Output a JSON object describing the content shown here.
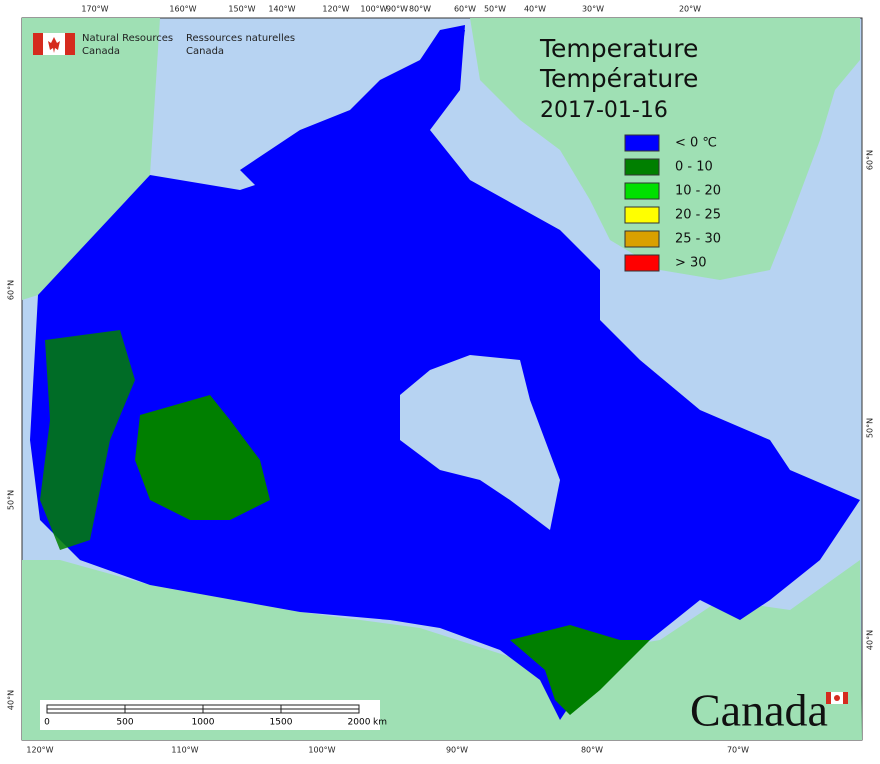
{
  "header": {
    "agency_en": [
      "Natural Resources",
      "Canada"
    ],
    "agency_fr": [
      "Ressources naturelles",
      "Canada"
    ]
  },
  "title": {
    "en": "Temperature",
    "fr": "Température",
    "date": "2017-01-16"
  },
  "legend": [
    {
      "label": "< 0 ℃",
      "color": "#0000ff"
    },
    {
      "label": "0 - 10",
      "color": "#007f00"
    },
    {
      "label": "10 - 20",
      "color": "#00e000"
    },
    {
      "label": "20 - 25",
      "color": "#ffff00"
    },
    {
      "label": "25 - 30",
      "color": "#d9a000"
    },
    {
      "label": "> 30",
      "color": "#ff0000"
    }
  ],
  "graticule": {
    "top": [
      "170°W",
      "160°W",
      "150°W",
      "140°W",
      "120°W",
      "100°W",
      "90°W",
      "80°W",
      "60°W",
      "50°W",
      "40°W",
      "30°W",
      "20°W"
    ],
    "bottom": [
      "120°W",
      "110°W",
      "100°W",
      "90°W",
      "80°W",
      "70°W"
    ],
    "left": [
      "60°N",
      "50°N",
      "40°N"
    ],
    "right": [
      "60°N",
      "50°N",
      "40°N"
    ]
  },
  "scale_bar": {
    "labels": [
      "0",
      "500",
      "1000",
      "1500",
      "2000"
    ],
    "unit": "km"
  },
  "wordmark": "Canada"
}
